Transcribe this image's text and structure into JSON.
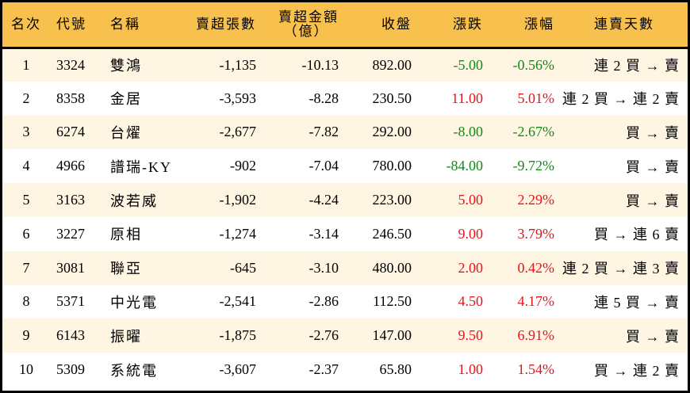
{
  "table": {
    "headers": {
      "rank": "名次",
      "code": "代號",
      "name": "名稱",
      "net_sell_lots": "賣超張數",
      "net_sell_amount_line1": "賣超金額",
      "net_sell_amount_line2": "（億）",
      "close": "收盤",
      "change": "漲跌",
      "change_pct": "漲幅",
      "streak": "連賣天數"
    },
    "colors": {
      "header_bg": "#F8C14E",
      "row_odd_bg": "#FEF5E2",
      "row_even_bg": "#FFFFFF",
      "up": "#E8141C",
      "down": "#118A17"
    },
    "rows": [
      {
        "rank": "1",
        "code": "3324",
        "name": "雙鴻",
        "lots": "-1,135",
        "amount": "-10.13",
        "close": "892.00",
        "change": "-5.00",
        "pct": "-0.56%",
        "dir": "down",
        "streak": "連 2 買 → 賣"
      },
      {
        "rank": "2",
        "code": "8358",
        "name": "金居",
        "lots": "-3,593",
        "amount": "-8.28",
        "close": "230.50",
        "change": "11.00",
        "pct": "5.01%",
        "dir": "up",
        "streak": "連 2 買 → 連 2 賣"
      },
      {
        "rank": "3",
        "code": "6274",
        "name": "台燿",
        "lots": "-2,677",
        "amount": "-7.82",
        "close": "292.00",
        "change": "-8.00",
        "pct": "-2.67%",
        "dir": "down",
        "streak": "買 → 賣"
      },
      {
        "rank": "4",
        "code": "4966",
        "name": "譜瑞-KY",
        "lots": "-902",
        "amount": "-7.04",
        "close": "780.00",
        "change": "-84.00",
        "pct": "-9.72%",
        "dir": "down",
        "streak": "買 → 賣"
      },
      {
        "rank": "5",
        "code": "3163",
        "name": "波若威",
        "lots": "-1,902",
        "amount": "-4.24",
        "close": "223.00",
        "change": "5.00",
        "pct": "2.29%",
        "dir": "up",
        "streak": "買 → 賣"
      },
      {
        "rank": "6",
        "code": "3227",
        "name": "原相",
        "lots": "-1,274",
        "amount": "-3.14",
        "close": "246.50",
        "change": "9.00",
        "pct": "3.79%",
        "dir": "up",
        "streak": "買 → 連 6 賣"
      },
      {
        "rank": "7",
        "code": "3081",
        "name": "聯亞",
        "lots": "-645",
        "amount": "-3.10",
        "close": "480.00",
        "change": "2.00",
        "pct": "0.42%",
        "dir": "up",
        "streak": "連 2 買 → 連 3 賣"
      },
      {
        "rank": "8",
        "code": "5371",
        "name": "中光電",
        "lots": "-2,541",
        "amount": "-2.86",
        "close": "112.50",
        "change": "4.50",
        "pct": "4.17%",
        "dir": "up",
        "streak": "連 5 買 → 賣"
      },
      {
        "rank": "9",
        "code": "6143",
        "name": "振曜",
        "lots": "-1,875",
        "amount": "-2.76",
        "close": "147.00",
        "change": "9.50",
        "pct": "6.91%",
        "dir": "up",
        "streak": "買 → 賣"
      },
      {
        "rank": "10",
        "code": "5309",
        "name": "系統電",
        "lots": "-3,607",
        "amount": "-2.37",
        "close": "65.80",
        "change": "1.00",
        "pct": "1.54%",
        "dir": "up",
        "streak": "買 → 連 2 賣"
      }
    ]
  }
}
